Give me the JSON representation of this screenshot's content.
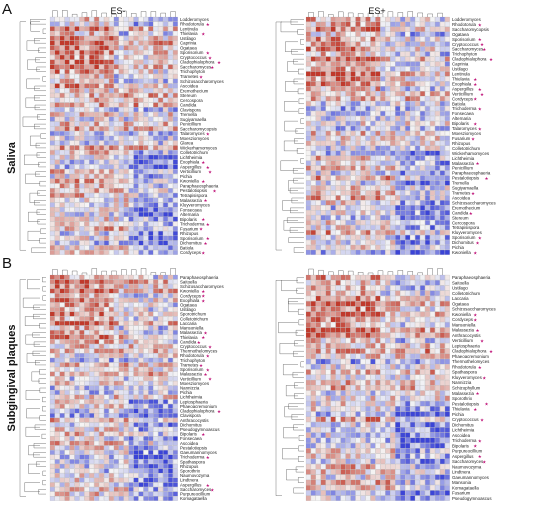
{
  "figure": {
    "panel_letters": [
      "A",
      "B"
    ],
    "side_labels": {
      "top": "Saliva",
      "bottom": "Subgingival plaques"
    },
    "conditions": [
      "ES-",
      "ES+"
    ],
    "color_scale": {
      "low": "#3b44d6",
      "mid": "#f5f5f5",
      "high": "#c0392b"
    },
    "star_color": "#c0177a"
  },
  "chart_data": [
    {
      "type": "heatmap",
      "panel": "A",
      "title": "ES-",
      "rows": [
        "Lodderomyces",
        "Rhodotorula",
        "Lentinula",
        "Thielavia",
        "Ustilago",
        "Caprinia",
        "Ogataea",
        "Sporisorium",
        "Cryptococcus",
        "Cladophialophora",
        "Saccharomyces",
        "Trichophyton",
        "Trametes",
        "Schizosaccharomyces",
        "Ascoidea",
        "Eremothecium",
        "Stereum",
        "Cercospora",
        "Candida",
        "Clavispora",
        "Tremella",
        "Sugiyamaella",
        "Penicillium",
        "Saccharomycopsis",
        "Talaromyces",
        "Moesziomyces",
        "Glarea",
        "Wickerhamomyces",
        "Colletotrichum",
        "Lichtheimia",
        "Exophiala",
        "Aspergillus",
        "Verticillium",
        "Pichia",
        "Kwoniella",
        "Paraphaeosphaeria",
        "Pestalotiopsis",
        "Tetrapisispora",
        "Malassezia",
        "Kluyveromyces",
        "Fonsecaea",
        "Alternaria",
        "Bipolaris",
        "Trichoderma",
        "Fusarium",
        "Rhizopus",
        "Sporisorium",
        "Dichomitus",
        "Batiola",
        "Cordyceps"
      ],
      "starred": [
        "Rhodotorula",
        "Thielavia",
        "Cryptococcus",
        "Cladophialophora",
        "Saccharomyces",
        "Trametes",
        "Talaromyces",
        "Exophiala",
        "Aspergillus",
        "Verticillium",
        "Kwoniella",
        "Pestalotiopsis",
        "Malassezia",
        "Bipolaris",
        "Trichoderma",
        "Fusarium",
        "Sporisorium",
        "Dichomitus",
        "Cordyceps"
      ]
    },
    {
      "type": "heatmap",
      "panel": "A",
      "title": "ES+",
      "rows": [
        "Lodderomyces",
        "Rhodotorula",
        "Saccharomycopsis",
        "Ogataea",
        "Sporisorium",
        "Cryptococcus",
        "Saccharomyces",
        "Trichophyton",
        "Cladophialophora",
        "Caprinia",
        "Ustilago",
        "Lentinula",
        "Thielavia",
        "Exophiala",
        "Aspergillus",
        "Verticillium",
        "Cordyceps",
        "Batiola",
        "Trichoderma",
        "Fonsecaea",
        "Alternaria",
        "Bipolaris",
        "Talaromyces",
        "Moesziomyces",
        "Fusarium",
        "Rhizopus",
        "Colletotrichum",
        "Wickerhamomyces",
        "Lichtheimia",
        "Malassezia",
        "Penicillium",
        "Paraphaeosphaeria",
        "Pestalotiopsis",
        "Tremella",
        "Sugiyamaella",
        "Trametes",
        "Ascoidea",
        "Schizosaccharomyces",
        "Eremothecium",
        "Candida",
        "Stereum",
        "Cercospora",
        "Tetrapisispora",
        "Kluyveromyces",
        "Sporisorium",
        "Dichomitus",
        "Pichia",
        "Kwoniella"
      ],
      "starred": [
        "Rhodotorula",
        "Cryptococcus",
        "Saccharomyces",
        "Cladophialophora",
        "Thielavia",
        "Exophiala",
        "Aspergillus",
        "Verticillium",
        "Cordyceps",
        "Trichoderma",
        "Bipolaris",
        "Talaromyces",
        "Fusarium",
        "Malassezia",
        "Pestalotiopsis",
        "Trametes",
        "Candida",
        "Sporisorium",
        "Dichomitus",
        "Kwoniella"
      ]
    },
    {
      "type": "heatmap",
      "panel": "B",
      "title": "ES-",
      "rows": [
        "Paraphaeosphaeria",
        "Saitoella",
        "Schizosaccharomyces",
        "Kwoniella",
        "Cordyceps",
        "Exophiala",
        "Ogataea",
        "Ustilago",
        "Sporotrichum",
        "Colletotrichum",
        "Laccaria",
        "Mansoniella",
        "Malassezia",
        "Thielavia",
        "Candida",
        "Cryptococcus",
        "Thermothelomyces",
        "Rhodotorula",
        "Trichophyton",
        "Trametes",
        "Sporisorium",
        "Malassezia",
        "Verticillium",
        "Moesziomyces",
        "Nannizzia",
        "Pichia",
        "Lichtheimia",
        "Leptosphaeria",
        "Phaeoacremonium",
        "Cladophialophora",
        "Clavispora",
        "Anthracocystis",
        "Dichomitus",
        "Pseudogymnoascus",
        "Bipolaris",
        "Fonsecaea",
        "Ascoidea",
        "Pestalotiopsis",
        "Gaeumannomyces",
        "Trichoderma",
        "Spathaspora",
        "Rhizopus",
        "Sporothrix",
        "Naumovozyma",
        "Lindtnera",
        "Aspergillus",
        "Saccharomyces",
        "Purpureocillium",
        "Komagataella"
      ],
      "starred": [
        "Kwoniella",
        "Cordyceps",
        "Exophiala",
        "Malassezia",
        "Thielavia",
        "Candida",
        "Cryptococcus",
        "Rhodotorula",
        "Trametes",
        "Sporisorium",
        "Malassezia",
        "Verticillium",
        "Cladophialophora",
        "Bipolaris",
        "Trichoderma",
        "Aspergillus",
        "Saccharomyces"
      ]
    },
    {
      "type": "heatmap",
      "panel": "B",
      "title": "ES+",
      "rows": [
        "Paraphaeosphaeria",
        "Saitoella",
        "Ustilago",
        "Colletotrichum",
        "Laccaria",
        "Ogataea",
        "Schizosaccharomyces",
        "Kwoniella",
        "Cordyceps",
        "Mansoniella",
        "Malassezia",
        "Anthracocystis",
        "Verticillium",
        "Leptosphaeria",
        "Cladophialophora",
        "Phaeoacremonium",
        "Thermothelomyces",
        "Rhodotorula",
        "Spathaspora",
        "Kluyveromyces",
        "Nannizzia",
        "Schizophyllum",
        "Malassezia",
        "Sporothrix",
        "Pestalotiopsis",
        "Thielavia",
        "Pichia",
        "Cryptococcus",
        "Dichomitus",
        "Lichtheimia",
        "Ascoidea",
        "Trichoderma",
        "Bipolaris",
        "Purpureocillium",
        "Aspergillus",
        "Saccharomyces",
        "Naumovozyma",
        "Lindtnera",
        "Gaeumannomyces",
        "Mansonia",
        "Komagataella",
        "Fusarium",
        "Pseudogymnoascus"
      ],
      "starred": [
        "Kwoniella",
        "Cordyceps",
        "Malassezia",
        "Verticillium",
        "Cladophialophora",
        "Rhodotorula",
        "Kluyveromyces",
        "Malassezia",
        "Pestalotiopsis",
        "Thielavia",
        "Cryptococcus",
        "Trichoderma",
        "Bipolaris",
        "Aspergillus",
        "Saccharomyces"
      ]
    }
  ]
}
